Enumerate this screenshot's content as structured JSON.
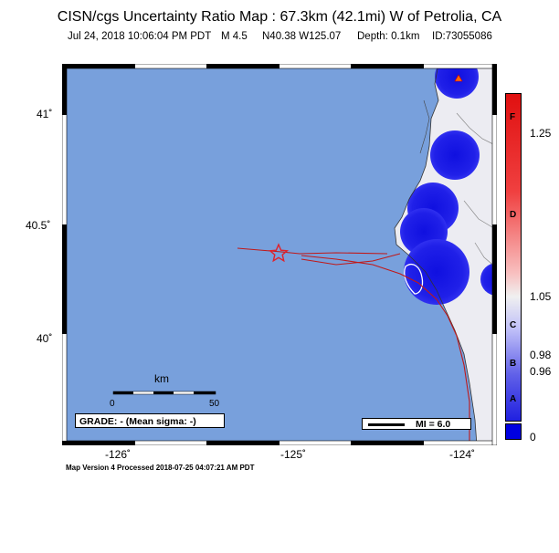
{
  "header": {
    "title": "CISN/cgs Uncertainty Ratio Map : 67.3km (42.1mi) W of Petrolia, CA",
    "datetime": "Jul 24, 2018 10:06:04 PM PDT",
    "magnitude": "M 4.5",
    "location": "N40.38 W125.07",
    "depth": "Depth: 0.1km",
    "event_id": "ID:73055086"
  },
  "map": {
    "lat_labels": [
      "41˚",
      "40.5˚",
      "40˚"
    ],
    "lon_labels": [
      "-126˚",
      "-125˚",
      "-124˚"
    ],
    "ocean_color": "#78a0dc",
    "land_color": "#ececf2",
    "epicenter_color": "#e0202a",
    "station_icon": "triangle-icon"
  },
  "scale_bar": {
    "unit": "km",
    "start": "0",
    "end": "50"
  },
  "legend": {
    "grade": "GRADE: - (Mean sigma: -)",
    "mi": "MI = 6.0"
  },
  "colorbar": {
    "values": [
      "1.25",
      "1.05",
      "0.98",
      "0.96",
      "0"
    ],
    "grades": [
      "F",
      "D",
      "C",
      "B",
      "A"
    ],
    "colors": [
      "#e01010",
      "#f0f0f0",
      "#0000e0"
    ]
  },
  "footer": {
    "text": "Map Version 4 Processed 2018-07-25 04:07:21 AM PDT"
  }
}
